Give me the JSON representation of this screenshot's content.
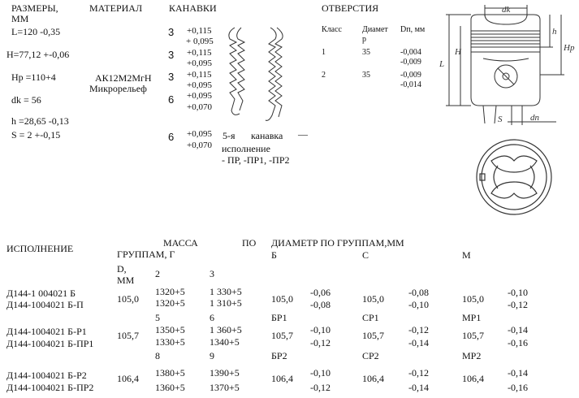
{
  "specs": {
    "header": "РАЗМЕРЫ,",
    "header_unit": "ММ",
    "rows": [
      "L=120 -0,35",
      "H=77,12 +-0,06",
      "Hp =110+4",
      "dk = 56",
      "h =28,65 -0,13",
      "S = 2 +-0,15"
    ]
  },
  "material": {
    "header": "МАТЕРИАЛ",
    "line1": "АК12М2МгН",
    "line2": "Микрорельеф"
  },
  "grooves": {
    "header": "КАНАВКИ",
    "items": [
      {
        "num": "3",
        "upper": "+0,115",
        "lower": "+ 0,095"
      },
      {
        "num": "3",
        "upper": "+0,115",
        "lower": "+0,095"
      },
      {
        "num": "3",
        "upper": "+0,115",
        "lower": "+0,095"
      },
      {
        "num": "6",
        "upper": "+0,095",
        "lower": "+0,070"
      },
      {
        "num": "6",
        "upper": "+0,095",
        "lower": "+0,070"
      }
    ],
    "note_line1_a": "5-я",
    "note_line1_b": "канавка",
    "note_line1_c": "—",
    "note_line2": "исполнение",
    "note_line3": "- ПР, -ПР1, -ПР2"
  },
  "holes": {
    "header": "ОТВЕРСТИЯ",
    "col_class": "Класс",
    "col_diam_1": "Диамет",
    "col_diam_2": "р",
    "col_dp": "Dп, мм",
    "rows": [
      {
        "cls": "1",
        "diam": "35",
        "tol1": "-0,004",
        "tol2": "-0,009"
      },
      {
        "cls": "2",
        "diam": "35",
        "tol1": "-0,009",
        "tol2": "-0,014"
      }
    ]
  },
  "drawing": {
    "labels": {
      "dk": "dk",
      "h": "h",
      "hp": "Hp",
      "H": "H",
      "L": "L",
      "S": "S",
      "dn": "dп"
    }
  },
  "table": {
    "col_exec": "ИСПОЛНЕНИЕ",
    "mass_word1": "МАССА",
    "mass_word2": "ПО",
    "mass_line2": "ГРУППАМ, Г",
    "diam_header": "ДИАМЕТР ПО ГРУППАМ,ММ",
    "d_label_1": "D,",
    "d_label_2": "ММ",
    "grp2": "2",
    "grp3": "3",
    "col_B": "Б",
    "col_C": "С",
    "col_M": "М",
    "rows": [
      {
        "exec1": "Д144-1 004021 Б",
        "exec2": "Д144-1004021 Б-П",
        "d": "105,0",
        "m2a": "1320+5",
        "m2b": "1320+5",
        "m3a": "1 330+5",
        "m3b": "1 310+5",
        "b_val": "105,0",
        "b_t1": "-0,06",
        "b_t2": "-0,08",
        "c_val": "105,0",
        "c_t1": "-0,08",
        "c_t2": "-0,10",
        "m_val": "105,0",
        "m_t1": "-0,10",
        "m_t2": "-0,12",
        "gn2": "5",
        "gn3": "6",
        "gB": "БР1",
        "gC": "СР1",
        "gM": "МР1"
      },
      {
        "exec1": "Д144-1004021 Б-Р1",
        "exec2": "Д144-1004021 Б-ПР1",
        "d": "105,7",
        "m2a": "1350+5",
        "m2b": "1330+5",
        "m3a": "1 360+5",
        "m3b": "1340+5",
        "b_val": "105,7",
        "b_t1": "-0,10",
        "b_t2": "-0,12",
        "c_val": "105,7",
        "c_t1": "-0,12",
        "c_t2": "-0,14",
        "m_val": "105,7",
        "m_t1": "-0,14",
        "m_t2": "-0,16",
        "gn2": "8",
        "gn3": "9",
        "gB": "БР2",
        "gC": "СР2",
        "gM": "МР2"
      },
      {
        "exec1": "Д144-1004021 Б-Р2",
        "exec2": "Д144-1004021 Б-ПР2",
        "d": "106,4",
        "m2a": "1380+5",
        "m2b": "1360+5",
        "m3a": "1390+5",
        "m3b": "1370+5",
        "b_val": "106,4",
        "b_t1": "-0,10",
        "b_t2": "-0,12",
        "c_val": "106,4",
        "c_t1": "-0,12",
        "c_t2": "-0,14",
        "m_val": "106,4",
        "m_t1": "-0,14",
        "m_t2": "-0,16"
      }
    ]
  }
}
